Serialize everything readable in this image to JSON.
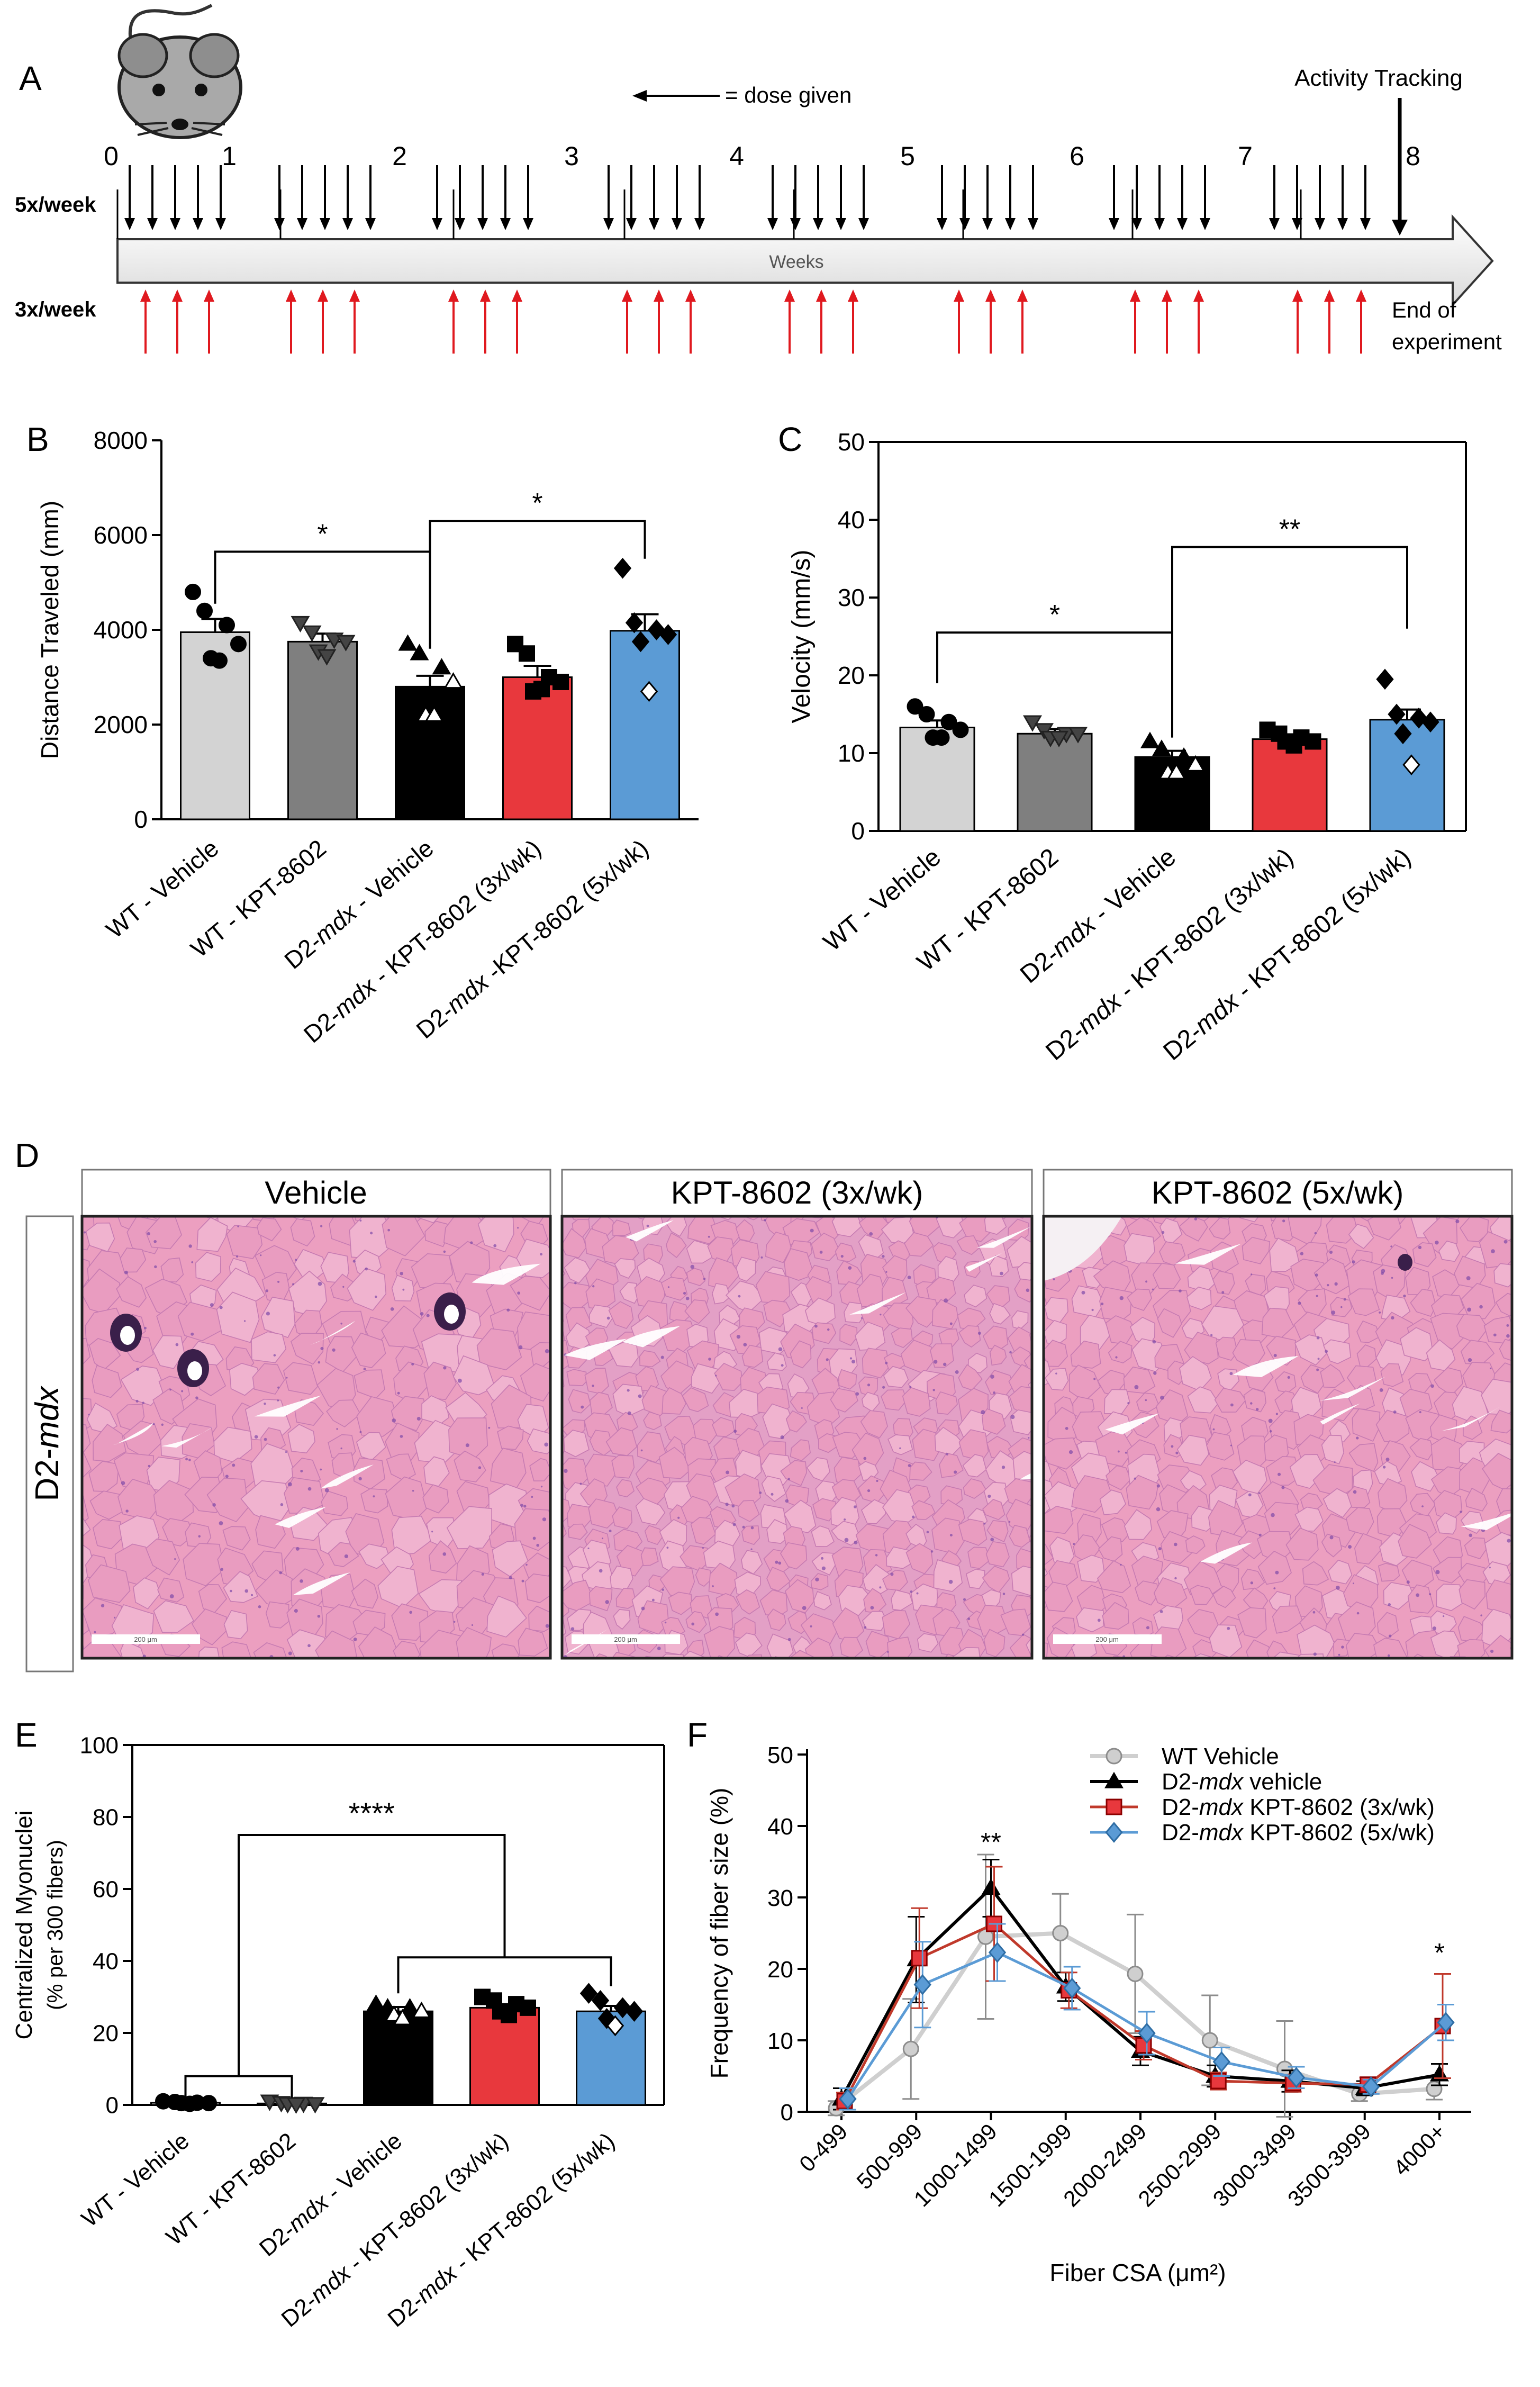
{
  "colors": {
    "wt_vehicle": "#d3d3d3",
    "wt_kpt": "#7f7f7f",
    "mdx_vehicle": "#000000",
    "mdx_3x": "#e8383d",
    "mdx_5x": "#5b9bd5",
    "arrow_black": "#000000",
    "arrow_red": "#e0191f",
    "tissue_pink": "#e9a3c4"
  },
  "panel_a": {
    "letter": "A",
    "legend_text": "= dose given",
    "activity_label": "Activity Tracking",
    "end_label_1": "End of",
    "end_label_2": "experiment",
    "row_5x": "5x/week",
    "row_3x": "3x/week",
    "axis_label": "Weeks",
    "weeks": [
      "0",
      "1",
      "2",
      "3",
      "4",
      "5",
      "6",
      "7",
      "8"
    ]
  },
  "panel_b": {
    "letter": "B",
    "sig": [
      "*",
      "*"
    ]
  },
  "panel_c": {
    "letter": "C",
    "sig": [
      "*",
      "**"
    ]
  },
  "panel_d": {
    "letter": "D",
    "row_label_prefix": "D2-",
    "row_label_italic": "mdx",
    "headers": [
      "Vehicle",
      "KPT-8602 (3x/wk)",
      "KPT-8602 (5x/wk)"
    ],
    "scalebars": [
      "200 μm",
      "200 μm",
      "200 μm"
    ]
  },
  "panel_e": {
    "letter": "E",
    "sig": "****"
  },
  "panel_f": {
    "letter": "F",
    "sig": [
      "**",
      "*"
    ]
  },
  "chart_data": [
    {
      "type": "bar",
      "panel": "B",
      "ylabel": "Distance Traveled (mm)",
      "ylim": [
        0,
        8000
      ],
      "yticks": [
        "0",
        "2000",
        "4000",
        "6000",
        "8000"
      ],
      "categories": [
        "WT - Vehicle",
        "WT - KPT-8602",
        "D2-mdx - Vehicle",
        "D2-mdx - KPT-8602 (3x/wk)",
        "D2-mdx -KPT-8602 (5x/wk)"
      ],
      "values": [
        3950,
        3750,
        2800,
        3000,
        3980
      ],
      "errors": [
        280,
        170,
        230,
        240,
        350
      ],
      "points": [
        [
          4800,
          4400,
          4100,
          3700,
          3400,
          3350
        ],
        [
          4150,
          3950,
          3800,
          3750,
          3550,
          3450
        ],
        [
          3700,
          3500,
          3200,
          2900,
          2200,
          2200
        ],
        [
          3700,
          3500,
          3000,
          2900,
          2700,
          2750
        ],
        [
          5300,
          4150,
          4000,
          3900,
          3750,
          2700
        ]
      ],
      "markers": [
        "circle",
        "triangle-down",
        "triangle-mixed",
        "square",
        "diamond"
      ]
    },
    {
      "type": "bar",
      "panel": "C",
      "ylabel": "Velocity (mm/s)",
      "ylim": [
        0,
        50
      ],
      "yticks": [
        "0",
        "10",
        "20",
        "30",
        "40",
        "50"
      ],
      "categories": [
        "WT - Vehicle",
        "WT - KPT-8602",
        "D2-mdx - Vehicle",
        "D2-mdx - KPT-8602 (3x/wk)",
        "D2-mdx - KPT-8602 (5x/wk)"
      ],
      "values": [
        13.3,
        12.5,
        9.5,
        11.8,
        14.3
      ],
      "errors": [
        0.9,
        0.6,
        0.8,
        0.5,
        1.3
      ],
      "points": [
        [
          16,
          15,
          14,
          13,
          12,
          12
        ],
        [
          14,
          13,
          12.5,
          12.5,
          12,
          12
        ],
        [
          11.5,
          10.5,
          9.5,
          8.5,
          7.5,
          7.5
        ],
        [
          13,
          12.5,
          12,
          11.5,
          11.5,
          11
        ],
        [
          19.5,
          15,
          14.5,
          14,
          12.5,
          8.5
        ]
      ],
      "markers": [
        "circle",
        "triangle-down",
        "triangle-mixed",
        "square",
        "diamond"
      ]
    },
    {
      "type": "bar",
      "panel": "E",
      "ylabel": "Centralized Myonuclei",
      "ylabel2": "(% per 300 fibers)",
      "ylim": [
        0,
        100
      ],
      "yticks": [
        "0",
        "20",
        "40",
        "60",
        "80",
        "100"
      ],
      "categories": [
        "WT - Vehicle",
        "WT - KPT-8602",
        "D2-mdx - Vehicle",
        "D2-mdx - KPT-8602 (3x/wk)",
        "D2-mdx - KPT-8602 (5x/wk)"
      ],
      "values": [
        0.6,
        0.4,
        26,
        27,
        26
      ],
      "errors": [
        0.3,
        0.3,
        1.2,
        1.0,
        1.5
      ],
      "points": [
        [
          1,
          0.8,
          0.6,
          0.5,
          0.5,
          0.3
        ],
        [
          1,
          0.6,
          0.4,
          0.3,
          0.3,
          0.2
        ],
        [
          28,
          27,
          27,
          26,
          25,
          24
        ],
        [
          30,
          29,
          28,
          27,
          26,
          25
        ],
        [
          31,
          29,
          27,
          26,
          24,
          22
        ]
      ],
      "markers": [
        "circle",
        "triangle-down",
        "triangle-mixed",
        "square",
        "diamond"
      ]
    },
    {
      "type": "line",
      "panel": "F",
      "ylabel": "Frequency of fiber size (%)",
      "xlabel": "Fiber CSA (μm²)",
      "ylim": [
        0,
        50
      ],
      "yticks": [
        "0",
        "10",
        "20",
        "30",
        "40",
        "50"
      ],
      "categories": [
        "0-499",
        "500-999",
        "1000-1499",
        "1500-1999",
        "2000-2499",
        "2500-2999",
        "3000-3499",
        "3500-3999",
        "4000+"
      ],
      "legend_position": "top-right",
      "series": [
        {
          "name": "WT Vehicle",
          "name_prefix": "WT",
          "name_italic": "",
          "name_suffix": "Vehicle",
          "marker": "circle",
          "values": [
            0.5,
            8.8,
            24.5,
            25.0,
            19.3,
            10.0,
            6.0,
            2.5,
            3.2
          ],
          "errors": [
            1.0,
            7.0,
            11.5,
            5.5,
            8.3,
            6.3,
            6.7,
            1.0,
            1.5
          ]
        },
        {
          "name": "D2-mdx vehicle",
          "name_prefix": "D2-",
          "name_italic": "mdx",
          "name_suffix": " vehicle",
          "marker": "triangle",
          "values": [
            1.8,
            21.3,
            31.3,
            17.5,
            8.5,
            5.0,
            4.3,
            3.3,
            5.2
          ],
          "errors": [
            1.5,
            6.0,
            4.0,
            2.0,
            2.0,
            1.5,
            1.5,
            1.0,
            1.5
          ]
        },
        {
          "name": "D2-mdx KPT-8602 (3x/wk)",
          "name_prefix": "D2-",
          "name_italic": "mdx",
          "name_suffix": " KPT-8602 (3x/wk)",
          "marker": "square",
          "values": [
            1.5,
            21.5,
            26.3,
            17.0,
            9.3,
            4.3,
            4.0,
            3.8,
            12.0
          ],
          "errors": [
            1.2,
            7.0,
            8.0,
            2.5,
            2.0,
            1.2,
            1.2,
            1.0,
            7.3
          ]
        },
        {
          "name": "D2-mdx KPT-8602 (5x/wk)",
          "name_prefix": "D2-",
          "name_italic": "mdx",
          "name_suffix": " KPT-8602 (5x/wk)",
          "marker": "diamond",
          "values": [
            1.8,
            17.8,
            22.3,
            17.3,
            11.0,
            7.0,
            4.8,
            3.5,
            12.5
          ],
          "errors": [
            1.5,
            6.0,
            4.0,
            3.0,
            3.0,
            2.0,
            1.5,
            1.0,
            2.5
          ]
        }
      ]
    }
  ]
}
